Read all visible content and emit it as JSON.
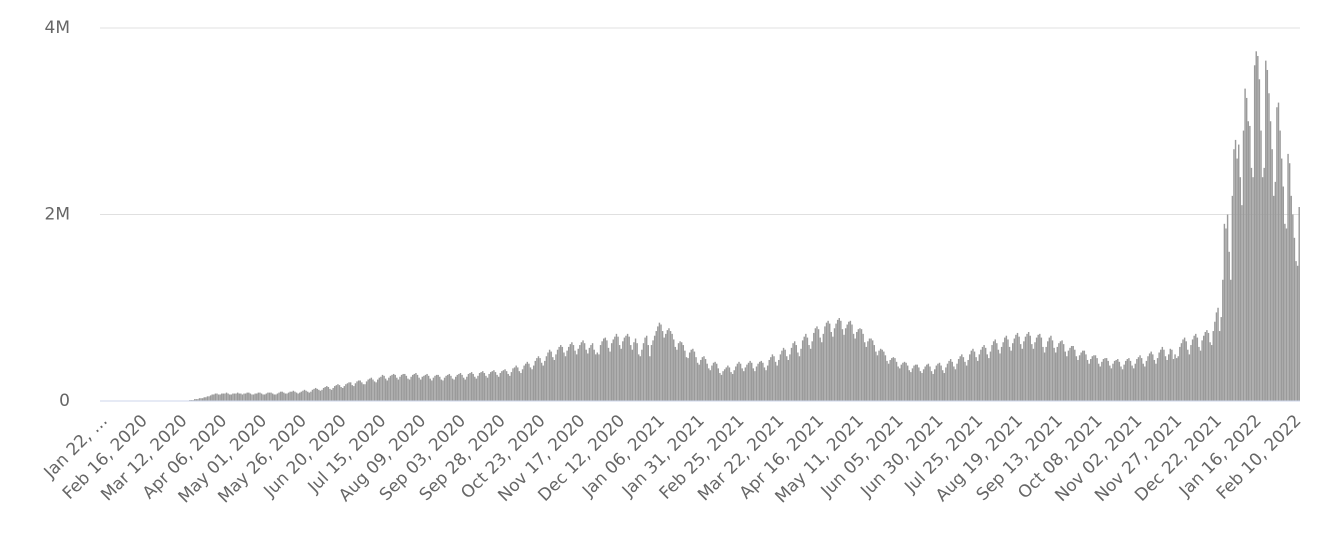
{
  "chart_data": {
    "type": "bar",
    "color": "#9a9a9a",
    "grid": true,
    "ylim": [
      0,
      4
    ],
    "yticks": [
      0,
      {
        "value": 2,
        "label": "2M"
      },
      {
        "value": 4,
        "label": "4M"
      }
    ],
    "categories": [
      "Jan 22, …",
      null,
      null,
      null,
      null,
      null,
      null,
      null,
      null,
      null,
      null,
      null,
      null,
      null,
      null,
      null,
      null,
      null,
      null,
      null,
      null,
      null,
      null,
      null,
      null,
      "Feb 16, 2020",
      null,
      null,
      null,
      null,
      null,
      null,
      null,
      null,
      null,
      null,
      null,
      null,
      null,
      null,
      null,
      null,
      null,
      null,
      null,
      null,
      null,
      null,
      null,
      null,
      "Mar 12, 2020",
      null,
      null,
      null,
      null,
      null,
      null,
      null,
      null,
      null,
      null,
      null,
      null,
      null,
      null,
      null,
      null,
      null,
      null,
      null,
      null,
      null,
      null,
      null,
      null,
      "Apr 06, 2020",
      null,
      null,
      null,
      null,
      null,
      null,
      null,
      null,
      null,
      null,
      null,
      null,
      null,
      null,
      null,
      null,
      null,
      null,
      null,
      null,
      null,
      null,
      null,
      null,
      "May 01, 2020",
      null,
      null,
      null,
      null,
      null,
      null,
      null,
      null,
      null,
      null,
      null,
      null,
      null,
      null,
      null,
      null,
      null,
      null,
      null,
      null,
      null,
      null,
      null,
      null,
      "May 26, 2020",
      null,
      null,
      null,
      null,
      null,
      null,
      null,
      null,
      null,
      null,
      null,
      null,
      null,
      null,
      null,
      null,
      null,
      null,
      null,
      null,
      null,
      null,
      null,
      null,
      "Jun 20, 2020",
      null,
      null,
      null,
      null,
      null,
      null,
      null,
      null,
      null,
      null,
      null,
      null,
      null,
      null,
      null,
      null,
      null,
      null,
      null,
      null,
      null,
      null,
      null,
      null,
      "Jul 15, 2020",
      null,
      null,
      null,
      null,
      null,
      null,
      null,
      null,
      null,
      null,
      null,
      null,
      null,
      null,
      null,
      null,
      null,
      null,
      null,
      null,
      null,
      null,
      null,
      null,
      "Aug 09, 2020",
      null,
      null,
      null,
      null,
      null,
      null,
      null,
      null,
      null,
      null,
      null,
      null,
      null,
      null,
      null,
      null,
      null,
      null,
      null,
      null,
      null,
      null,
      null,
      null,
      "Sep 03, 2020",
      null,
      null,
      null,
      null,
      null,
      null,
      null,
      null,
      null,
      null,
      null,
      null,
      null,
      null,
      null,
      null,
      null,
      null,
      null,
      null,
      null,
      null,
      null,
      null,
      "Sep 28, 2020",
      null,
      null,
      null,
      null,
      null,
      null,
      null,
      null,
      null,
      null,
      null,
      null,
      null,
      null,
      null,
      null,
      null,
      null,
      null,
      null,
      null,
      null,
      null,
      null,
      "Oct 23, 2020",
      null,
      null,
      null,
      null,
      null,
      null,
      null,
      null,
      null,
      null,
      null,
      null,
      null,
      null,
      null,
      null,
      null,
      null,
      null,
      null,
      null,
      null,
      null,
      null,
      "Nov 17, 2020",
      null,
      null,
      null,
      null,
      null,
      null,
      null,
      null,
      null,
      null,
      null,
      null,
      null,
      null,
      null,
      null,
      null,
      null,
      null,
      null,
      null,
      null,
      null,
      null,
      "Dec 12, 2020",
      null,
      null,
      null,
      null,
      null,
      null,
      null,
      null,
      null,
      null,
      null,
      null,
      null,
      null,
      null,
      null,
      null,
      null,
      null,
      null,
      null,
      null,
      null,
      null,
      "Jan 06, 2021",
      null,
      null,
      null,
      null,
      null,
      null,
      null,
      null,
      null,
      null,
      null,
      null,
      null,
      null,
      null,
      null,
      null,
      null,
      null,
      null,
      null,
      null,
      null,
      null,
      "Jan 31, 2021",
      null,
      null,
      null,
      null,
      null,
      null,
      null,
      null,
      null,
      null,
      null,
      null,
      null,
      null,
      null,
      null,
      null,
      null,
      null,
      null,
      null,
      null,
      null,
      null,
      "Feb 25, 2021",
      null,
      null,
      null,
      null,
      null,
      null,
      null,
      null,
      null,
      null,
      null,
      null,
      null,
      null,
      null,
      null,
      null,
      null,
      null,
      null,
      null,
      null,
      null,
      null,
      "Mar 22, 2021",
      null,
      null,
      null,
      null,
      null,
      null,
      null,
      null,
      null,
      null,
      null,
      null,
      null,
      null,
      null,
      null,
      null,
      null,
      null,
      null,
      null,
      null,
      null,
      null,
      "Apr 16, 2021",
      null,
      null,
      null,
      null,
      null,
      null,
      null,
      null,
      null,
      null,
      null,
      null,
      null,
      null,
      null,
      null,
      null,
      null,
      null,
      null,
      null,
      null,
      null,
      null,
      "May 11, 2021",
      null,
      null,
      null,
      null,
      null,
      null,
      null,
      null,
      null,
      null,
      null,
      null,
      null,
      null,
      null,
      null,
      null,
      null,
      null,
      null,
      null,
      null,
      null,
      null,
      "Jun 05, 2021",
      null,
      null,
      null,
      null,
      null,
      null,
      null,
      null,
      null,
      null,
      null,
      null,
      null,
      null,
      null,
      null,
      null,
      null,
      null,
      null,
      null,
      null,
      null,
      null,
      "Jun 30, 2021",
      null,
      null,
      null,
      null,
      null,
      null,
      null,
      null,
      null,
      null,
      null,
      null,
      null,
      null,
      null,
      null,
      null,
      null,
      null,
      null,
      null,
      null,
      null,
      null,
      "Jul 25, 2021",
      null,
      null,
      null,
      null,
      null,
      null,
      null,
      null,
      null,
      null,
      null,
      null,
      null,
      null,
      null,
      null,
      null,
      null,
      null,
      null,
      null,
      null,
      null,
      null,
      "Aug 19, 2021",
      null,
      null,
      null,
      null,
      null,
      null,
      null,
      null,
      null,
      null,
      null,
      null,
      null,
      null,
      null,
      null,
      null,
      null,
      null,
      null,
      null,
      null,
      null,
      null,
      "Sep 13, 2021",
      null,
      null,
      null,
      null,
      null,
      null,
      null,
      null,
      null,
      null,
      null,
      null,
      null,
      null,
      null,
      null,
      null,
      null,
      null,
      null,
      null,
      null,
      null,
      null,
      "Oct 08, 2021",
      null,
      null,
      null,
      null,
      null,
      null,
      null,
      null,
      null,
      null,
      null,
      null,
      null,
      null,
      null,
      null,
      null,
      null,
      null,
      null,
      null,
      null,
      null,
      null,
      "Nov 02, 2021",
      null,
      null,
      null,
      null,
      null,
      null,
      null,
      null,
      null,
      null,
      null,
      null,
      null,
      null,
      null,
      null,
      null,
      null,
      null,
      null,
      null,
      null,
      null,
      null,
      "Nov 27, 2021",
      null,
      null,
      null,
      null,
      null,
      null,
      null,
      null,
      null,
      null,
      null,
      null,
      null,
      null,
      null,
      null,
      null,
      null,
      null,
      null,
      null,
      null,
      null,
      null,
      "Dec 22, 2021",
      null,
      null,
      null,
      null,
      null,
      null,
      null,
      null,
      null,
      null,
      null,
      null,
      null,
      null,
      null,
      null,
      null,
      null,
      null,
      null,
      null,
      null,
      null,
      null,
      "Jan 16, 2022",
      null,
      null,
      null,
      null,
      null,
      null,
      null,
      null,
      null,
      null,
      null,
      null,
      null,
      null,
      null,
      null,
      null,
      null,
      null,
      null,
      null,
      null,
      null,
      null,
      "Feb 10, 2022",
      null,
      null,
      null
    ],
    "values": [
      0,
      0,
      0,
      0,
      0,
      0,
      0,
      0,
      0,
      0,
      0,
      0,
      0,
      0,
      0,
      0,
      0,
      0,
      0,
      0,
      0,
      0,
      0,
      0,
      0,
      0,
      0,
      0,
      0,
      0,
      0,
      0,
      0,
      0,
      0,
      0,
      0,
      0,
      0,
      0,
      0,
      0,
      0,
      0,
      0,
      0,
      0,
      0,
      0,
      0,
      0,
      0,
      0,
      0,
      0,
      0,
      0.01,
      0.01,
      0.01,
      0.02,
      0.02,
      0.02,
      0.03,
      0.03,
      0.03,
      0.04,
      0.04,
      0.05,
      0.05,
      0.06,
      0.07,
      0.07,
      0.08,
      0.08,
      0.07,
      0.07,
      0.08,
      0.08,
      0.08,
      0.09,
      0.08,
      0.07,
      0.07,
      0.08,
      0.08,
      0.08,
      0.09,
      0.08,
      0.08,
      0.07,
      0.08,
      0.08,
      0.09,
      0.09,
      0.08,
      0.07,
      0.07,
      0.08,
      0.08,
      0.09,
      0.09,
      0.08,
      0.07,
      0.07,
      0.08,
      0.09,
      0.09,
      0.09,
      0.08,
      0.07,
      0.07,
      0.08,
      0.09,
      0.1,
      0.1,
      0.09,
      0.08,
      0.08,
      0.09,
      0.1,
      0.1,
      0.11,
      0.1,
      0.09,
      0.08,
      0.09,
      0.1,
      0.11,
      0.12,
      0.11,
      0.1,
      0.09,
      0.1,
      0.12,
      0.13,
      0.14,
      0.13,
      0.12,
      0.11,
      0.12,
      0.14,
      0.15,
      0.16,
      0.15,
      0.13,
      0.12,
      0.14,
      0.16,
      0.17,
      0.18,
      0.17,
      0.15,
      0.14,
      0.16,
      0.18,
      0.19,
      0.2,
      0.2,
      0.17,
      0.16,
      0.19,
      0.21,
      0.22,
      0.22,
      0.2,
      0.18,
      0.18,
      0.21,
      0.23,
      0.24,
      0.25,
      0.23,
      0.21,
      0.2,
      0.23,
      0.25,
      0.26,
      0.28,
      0.27,
      0.24,
      0.22,
      0.25,
      0.27,
      0.28,
      0.29,
      0.28,
      0.25,
      0.23,
      0.26,
      0.28,
      0.29,
      0.29,
      0.27,
      0.24,
      0.23,
      0.26,
      0.28,
      0.29,
      0.3,
      0.28,
      0.25,
      0.23,
      0.26,
      0.27,
      0.28,
      0.29,
      0.27,
      0.24,
      0.22,
      0.25,
      0.27,
      0.28,
      0.28,
      0.26,
      0.23,
      0.22,
      0.25,
      0.27,
      0.28,
      0.29,
      0.27,
      0.24,
      0.23,
      0.26,
      0.28,
      0.29,
      0.3,
      0.28,
      0.25,
      0.23,
      0.26,
      0.29,
      0.3,
      0.31,
      0.29,
      0.26,
      0.24,
      0.27,
      0.3,
      0.31,
      0.32,
      0.3,
      0.27,
      0.25,
      0.29,
      0.31,
      0.32,
      0.33,
      0.31,
      0.28,
      0.26,
      0.3,
      0.32,
      0.33,
      0.34,
      0.32,
      0.29,
      0.27,
      0.31,
      0.35,
      0.36,
      0.38,
      0.36,
      0.32,
      0.3,
      0.34,
      0.38,
      0.4,
      0.42,
      0.4,
      0.36,
      0.34,
      0.38,
      0.43,
      0.46,
      0.48,
      0.46,
      0.41,
      0.38,
      0.43,
      0.48,
      0.52,
      0.55,
      0.53,
      0.47,
      0.44,
      0.5,
      0.55,
      0.58,
      0.6,
      0.58,
      0.52,
      0.48,
      0.54,
      0.58,
      0.61,
      0.63,
      0.6,
      0.54,
      0.5,
      0.56,
      0.6,
      0.63,
      0.65,
      0.62,
      0.55,
      0.51,
      0.57,
      0.6,
      0.62,
      0.55,
      0.5,
      0.52,
      0.5,
      0.6,
      0.64,
      0.67,
      0.68,
      0.65,
      0.57,
      0.53,
      0.62,
      0.66,
      0.69,
      0.72,
      0.69,
      0.6,
      0.56,
      0.64,
      0.68,
      0.7,
      0.72,
      0.69,
      0.6,
      0.55,
      0.63,
      0.67,
      0.62,
      0.5,
      0.48,
      0.55,
      0.62,
      0.68,
      0.7,
      0.6,
      0.48,
      0.6,
      0.65,
      0.7,
      0.75,
      0.8,
      0.84,
      0.82,
      0.75,
      0.68,
      0.72,
      0.76,
      0.78,
      0.75,
      0.72,
      0.66,
      0.58,
      0.55,
      0.62,
      0.64,
      0.63,
      0.6,
      0.54,
      0.47,
      0.46,
      0.52,
      0.55,
      0.56,
      0.53,
      0.47,
      0.41,
      0.39,
      0.44,
      0.47,
      0.48,
      0.45,
      0.4,
      0.35,
      0.33,
      0.38,
      0.41,
      0.42,
      0.4,
      0.35,
      0.3,
      0.28,
      0.32,
      0.34,
      0.36,
      0.38,
      0.36,
      0.31,
      0.29,
      0.33,
      0.37,
      0.4,
      0.42,
      0.4,
      0.35,
      0.32,
      0.36,
      0.39,
      0.41,
      0.43,
      0.41,
      0.35,
      0.32,
      0.37,
      0.4,
      0.42,
      0.43,
      0.41,
      0.36,
      0.33,
      0.38,
      0.44,
      0.47,
      0.5,
      0.48,
      0.42,
      0.38,
      0.44,
      0.5,
      0.54,
      0.57,
      0.55,
      0.48,
      0.44,
      0.5,
      0.57,
      0.62,
      0.64,
      0.6,
      0.52,
      0.48,
      0.56,
      0.65,
      0.69,
      0.72,
      0.68,
      0.6,
      0.56,
      0.64,
      0.73,
      0.78,
      0.8,
      0.77,
      0.68,
      0.63,
      0.72,
      0.8,
      0.84,
      0.86,
      0.83,
      0.74,
      0.69,
      0.78,
      0.83,
      0.87,
      0.89,
      0.86,
      0.77,
      0.71,
      0.78,
      0.82,
      0.85,
      0.86,
      0.82,
      0.72,
      0.67,
      0.74,
      0.77,
      0.78,
      0.77,
      0.72,
      0.63,
      0.58,
      0.64,
      0.67,
      0.67,
      0.65,
      0.6,
      0.53,
      0.49,
      0.54,
      0.56,
      0.55,
      0.53,
      0.49,
      0.43,
      0.4,
      0.44,
      0.46,
      0.47,
      0.46,
      0.42,
      0.37,
      0.35,
      0.39,
      0.41,
      0.42,
      0.41,
      0.38,
      0.33,
      0.31,
      0.35,
      0.38,
      0.39,
      0.39,
      0.36,
      0.32,
      0.3,
      0.34,
      0.37,
      0.39,
      0.4,
      0.37,
      0.32,
      0.29,
      0.34,
      0.38,
      0.4,
      0.41,
      0.38,
      0.33,
      0.3,
      0.36,
      0.4,
      0.43,
      0.45,
      0.42,
      0.37,
      0.34,
      0.4,
      0.45,
      0.48,
      0.5,
      0.47,
      0.42,
      0.38,
      0.44,
      0.5,
      0.54,
      0.56,
      0.53,
      0.47,
      0.43,
      0.5,
      0.55,
      0.58,
      0.6,
      0.57,
      0.5,
      0.46,
      0.53,
      0.6,
      0.64,
      0.66,
      0.62,
      0.55,
      0.51,
      0.58,
      0.63,
      0.68,
      0.7,
      0.66,
      0.58,
      0.54,
      0.62,
      0.67,
      0.71,
      0.73,
      0.69,
      0.61,
      0.56,
      0.64,
      0.69,
      0.72,
      0.74,
      0.7,
      0.61,
      0.56,
      0.63,
      0.68,
      0.71,
      0.72,
      0.68,
      0.58,
      0.52,
      0.58,
      0.64,
      0.68,
      0.7,
      0.65,
      0.57,
      0.52,
      0.58,
      0.62,
      0.64,
      0.65,
      0.61,
      0.53,
      0.48,
      0.54,
      0.57,
      0.59,
      0.59,
      0.55,
      0.48,
      0.44,
      0.49,
      0.52,
      0.54,
      0.54,
      0.5,
      0.44,
      0.4,
      0.45,
      0.48,
      0.49,
      0.49,
      0.46,
      0.4,
      0.37,
      0.42,
      0.45,
      0.46,
      0.46,
      0.43,
      0.38,
      0.35,
      0.4,
      0.43,
      0.44,
      0.45,
      0.42,
      0.37,
      0.34,
      0.39,
      0.43,
      0.45,
      0.46,
      0.43,
      0.38,
      0.35,
      0.4,
      0.45,
      0.47,
      0.49,
      0.46,
      0.4,
      0.37,
      0.43,
      0.48,
      0.51,
      0.53,
      0.5,
      0.44,
      0.4,
      0.46,
      0.52,
      0.55,
      0.58,
      0.55,
      0.48,
      0.44,
      0.5,
      0.56,
      0.55,
      0.45,
      0.5,
      0.46,
      0.48,
      0.58,
      0.62,
      0.66,
      0.68,
      0.64,
      0.55,
      0.5,
      0.6,
      0.66,
      0.7,
      0.72,
      0.68,
      0.58,
      0.54,
      0.65,
      0.7,
      0.74,
      0.76,
      0.73,
      0.63,
      0.6,
      0.75,
      0.85,
      0.95,
      1.0,
      0.75,
      0.9,
      1.3,
      1.9,
      1.85,
      2.0,
      1.6,
      1.3,
      2.2,
      2.7,
      2.8,
      2.6,
      2.75,
      2.4,
      2.1,
      2.9,
      3.35,
      3.25,
      3.0,
      2.95,
      2.5,
      2.4,
      3.6,
      3.75,
      3.7,
      3.45,
      2.9,
      2.4,
      2.5,
      3.65,
      3.55,
      3.3,
      3.0,
      2.7,
      2.2,
      2.35,
      3.15,
      3.2,
      2.9,
      2.6,
      2.3,
      1.9,
      1.85,
      2.65,
      2.55,
      2.2,
      2.0,
      1.75,
      1.5,
      1.45,
      2.08
    ]
  }
}
